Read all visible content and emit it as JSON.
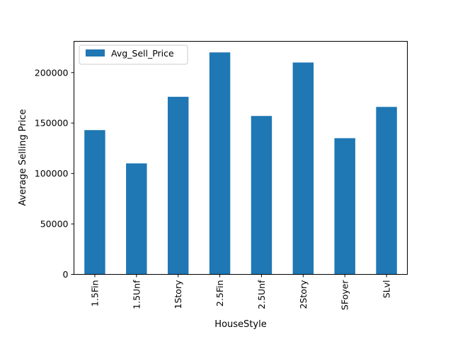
{
  "chart_data": {
    "type": "bar",
    "xlabel": "HouseStyle",
    "ylabel": "Average Selling Price",
    "categories": [
      "1.5Fin",
      "1.5Unf",
      "1Story",
      "2.5Fin",
      "2.5Unf",
      "2Story",
      "SFoyer",
      "SLvl"
    ],
    "series": [
      {
        "name": "Avg_Sell_Price",
        "values": [
          143000,
          110000,
          176000,
          220000,
          157000,
          210000,
          135000,
          166000
        ]
      }
    ],
    "yticks": [
      0,
      50000,
      100000,
      150000,
      200000
    ],
    "ylim": [
      0,
      231000
    ],
    "grid": false,
    "legend_position": "top-left",
    "bar_color": "#1f77b4"
  }
}
